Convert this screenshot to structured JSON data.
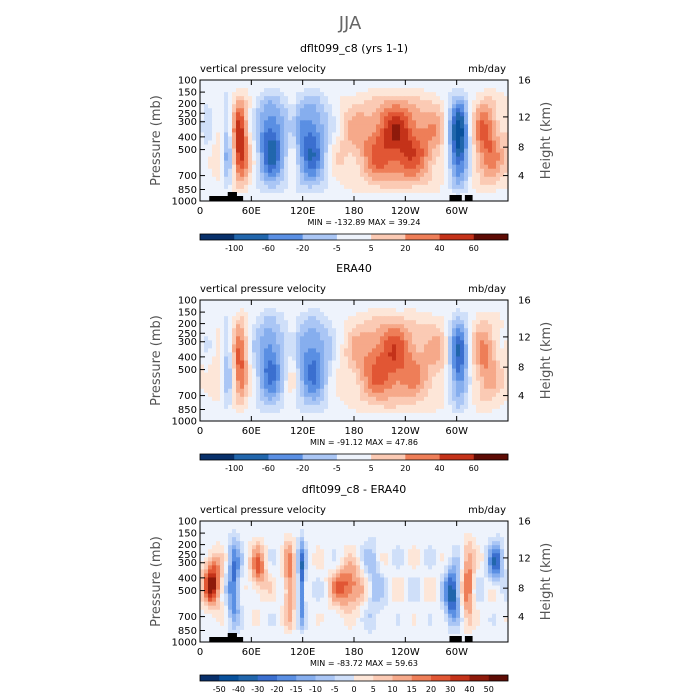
{
  "figure_title": "JJA",
  "colors": {
    "diverging": [
      "#08306b",
      "#08519c",
      "#2166ac",
      "#3b6fcf",
      "#5a8fe3",
      "#86aeee",
      "#aac6f5",
      "#cfdff9",
      "#eef3fc",
      "#fde6d8",
      "#fbcab4",
      "#f6a98a",
      "#ee7e58",
      "#e15634",
      "#c43219",
      "#8e1a0b",
      "#5e0c05"
    ]
  },
  "chart_data": [
    {
      "type": "heatmap",
      "title": "dflt099_c8 (yrs 1-1)",
      "variable": "vertical pressure velocity",
      "units": "mb/day",
      "xlabel": "",
      "ylabel": "Pressure (mb)",
      "ylabel_right": "Height (km)",
      "x_tick_labels": [
        "0",
        "60E",
        "120E",
        "180",
        "120W",
        "60W"
      ],
      "y_tick_labels": [
        "100",
        "150",
        "200",
        "250",
        "300",
        "400",
        "500",
        "700",
        "850",
        "1000"
      ],
      "y_right_tick_labels": [
        "16",
        "12",
        "8",
        "4"
      ],
      "stats": "MIN = -132.89   MAX =  39.24",
      "colorbar_labels": [
        "-100",
        "-60",
        "-20",
        "-5",
        "5",
        "20",
        "40",
        "60"
      ],
      "topography": true
    },
    {
      "type": "heatmap",
      "title": "ERA40",
      "variable": "vertical pressure velocity",
      "units": "mb/day",
      "xlabel": "",
      "ylabel": "Pressure (mb)",
      "ylabel_right": "Height (km)",
      "x_tick_labels": [
        "0",
        "60E",
        "120E",
        "180",
        "120W",
        "60W"
      ],
      "y_tick_labels": [
        "100",
        "150",
        "200",
        "250",
        "300",
        "400",
        "500",
        "700",
        "850",
        "1000"
      ],
      "y_right_tick_labels": [
        "16",
        "12",
        "8",
        "4"
      ],
      "stats": "MIN = -91.12   MAX =  47.86",
      "colorbar_labels": [
        "-100",
        "-60",
        "-20",
        "-5",
        "5",
        "20",
        "40",
        "60"
      ],
      "topography": false
    },
    {
      "type": "heatmap",
      "title": "dflt099_c8 - ERA40",
      "variable": "vertical pressure velocity",
      "units": "mb/day",
      "xlabel": "",
      "ylabel": "Pressure (mb)",
      "ylabel_right": "Height (km)",
      "x_tick_labels": [
        "0",
        "60E",
        "120E",
        "180",
        "120W",
        "60W"
      ],
      "y_tick_labels": [
        "100",
        "150",
        "200",
        "250",
        "300",
        "400",
        "500",
        "700",
        "850",
        "1000"
      ],
      "y_right_tick_labels": [
        "16",
        "12",
        "8",
        "4"
      ],
      "stats": "MIN = -83.72   MAX =  59.63",
      "colorbar_labels": [
        "-50",
        "-40",
        "-30",
        "-20",
        "-15",
        "-10",
        "-5",
        "0",
        "5",
        "10",
        "15",
        "20",
        "30",
        "40",
        "50"
      ],
      "topography": true
    }
  ]
}
